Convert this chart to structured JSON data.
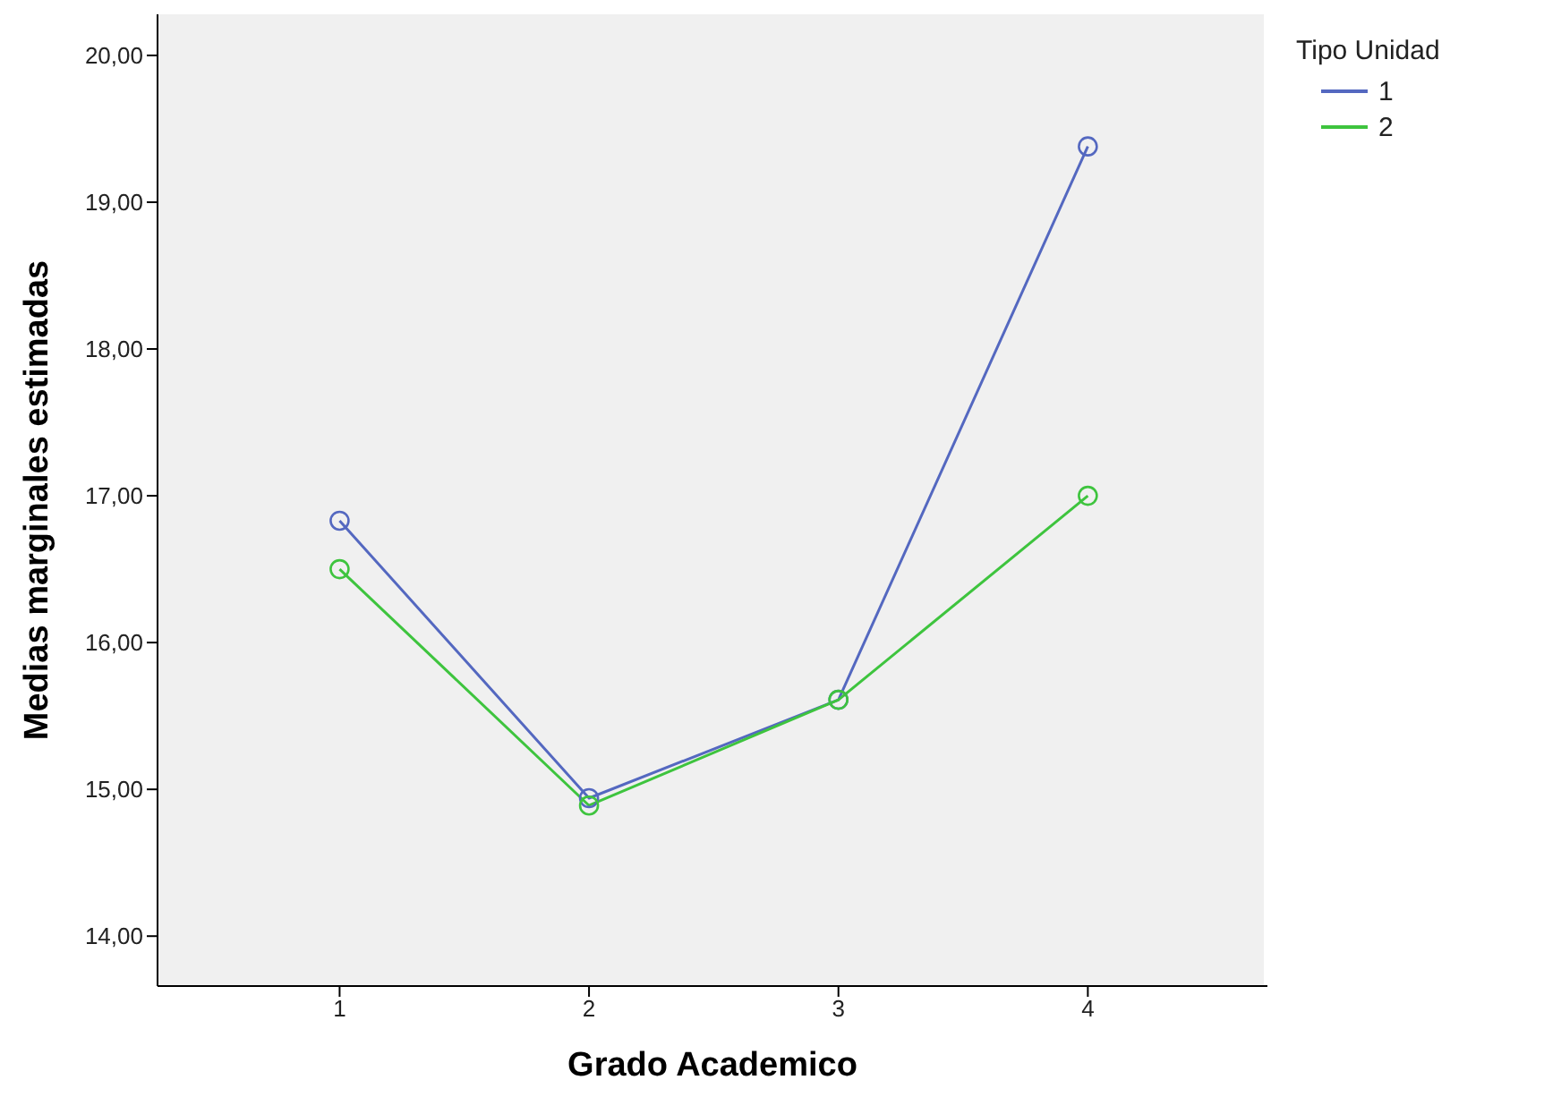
{
  "chart_data": {
    "type": "line",
    "xlabel": "Grado Academico",
    "ylabel": "Medias marginales estimadas",
    "legend_title": "Tipo Unidad",
    "categories": [
      "1",
      "2",
      "3",
      "4"
    ],
    "series": [
      {
        "name": "1",
        "color": "#5468c0",
        "values": [
          16.83,
          14.94,
          15.61,
          19.38
        ]
      },
      {
        "name": "2",
        "color": "#3ec43e",
        "values": [
          16.5,
          14.89,
          15.61,
          17.0
        ]
      }
    ],
    "ylim": [
      13.66,
      20.28
    ],
    "yticks": [
      {
        "value": 14,
        "label": "14,00"
      },
      {
        "value": 15,
        "label": "15,00"
      },
      {
        "value": 16,
        "label": "16,00"
      },
      {
        "value": 17,
        "label": "17,00"
      },
      {
        "value": 18,
        "label": "18,00"
      },
      {
        "value": 19,
        "label": "19,00"
      },
      {
        "value": 20,
        "label": "20,00"
      }
    ],
    "grid": false,
    "legend": "top right",
    "marker": "circle",
    "line_style": "solid"
  }
}
